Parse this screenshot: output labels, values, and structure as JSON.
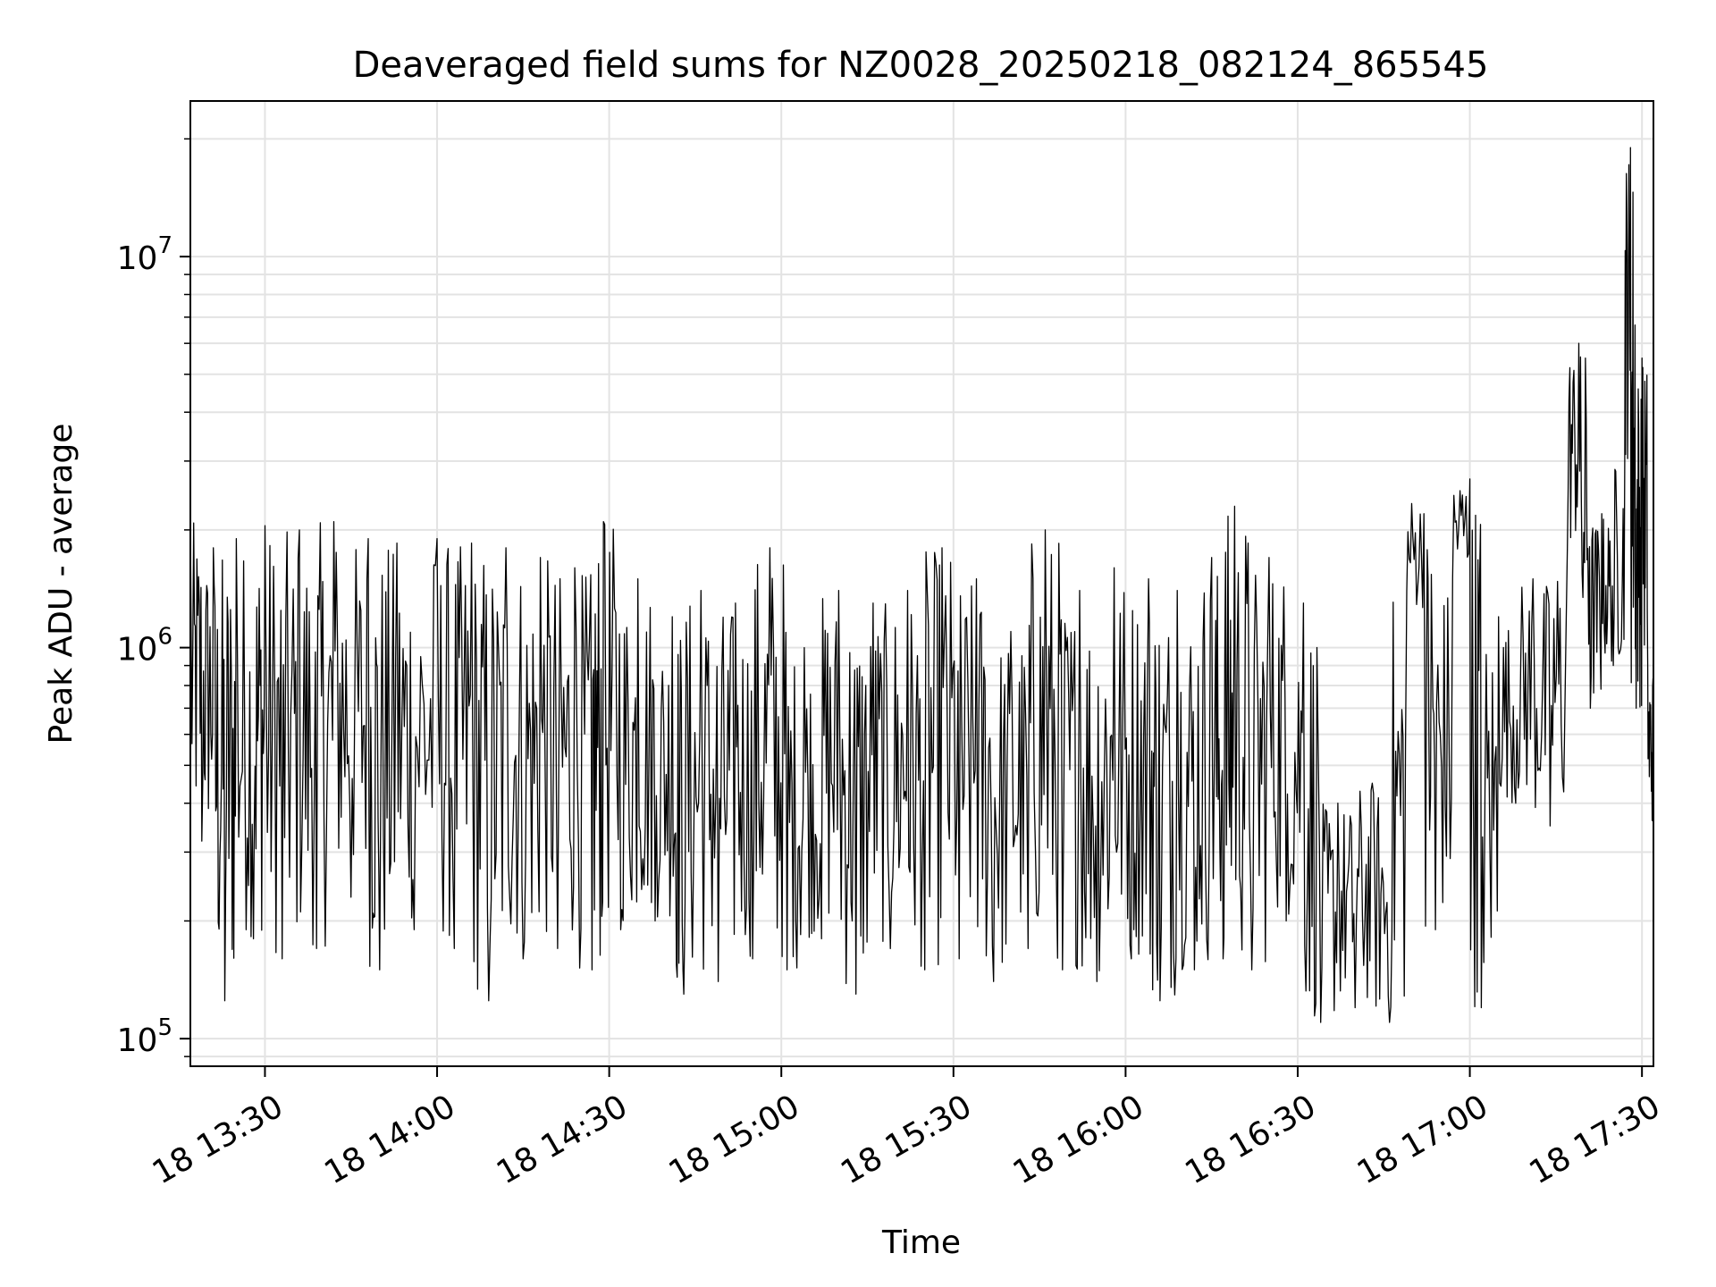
{
  "chart_data": {
    "type": "line",
    "title": "Deaveraged field sums for NZ0028_20250218_082124_865545",
    "xlabel": "Time",
    "ylabel": "Peak ADU - average",
    "yscale": "log",
    "xlim": [
      "18 13:17",
      "18 17:32"
    ],
    "ylim": [
      85000,
      25000000
    ],
    "x_ticks": [
      "18 13:30",
      "18 14:00",
      "18 14:30",
      "18 15:00",
      "18 15:30",
      "18 16:00",
      "18 16:30",
      "18 17:00",
      "18 17:30"
    ],
    "y_ticks": [
      {
        "base": "10",
        "exp": "5",
        "value": 100000
      },
      {
        "base": "10",
        "exp": "6",
        "value": 1000000
      },
      {
        "base": "10",
        "exp": "7",
        "value": 10000000
      }
    ],
    "grid": true,
    "line_color": "#000000",
    "series": [
      {
        "description_points": "approximate envelope of the dense noisy signal (time, value)",
        "points": [
          [
            "18 13:17",
            2100000
          ],
          [
            "18 13:19",
            320000
          ],
          [
            "18 13:21",
            1800000
          ],
          [
            "18 13:23",
            125000
          ],
          [
            "18 13:25",
            1900000
          ],
          [
            "18 13:28",
            180000
          ],
          [
            "18 13:30",
            2050000
          ],
          [
            "18 13:33",
            160000
          ],
          [
            "18 13:36",
            2000000
          ],
          [
            "18 13:39",
            170000
          ],
          [
            "18 13:42",
            2100000
          ],
          [
            "18 13:45",
            230000
          ],
          [
            "18 13:48",
            1900000
          ],
          [
            "18 13:50",
            150000
          ],
          [
            "18 13:53",
            1850000
          ],
          [
            "18 13:56",
            190000
          ],
          [
            "18 14:00",
            1900000
          ],
          [
            "18 14:03",
            170000
          ],
          [
            "18 14:06",
            1850000
          ],
          [
            "18 14:09",
            125000
          ],
          [
            "18 14:12",
            1800000
          ],
          [
            "18 14:15",
            160000
          ],
          [
            "18 14:18",
            1700000
          ],
          [
            "18 14:21",
            170000
          ],
          [
            "18 14:24",
            1600000
          ],
          [
            "18 14:27",
            150000
          ],
          [
            "18 14:29",
            2100000
          ],
          [
            "18 14:32",
            190000
          ],
          [
            "18 14:35",
            1500000
          ],
          [
            "18 14:38",
            200000
          ],
          [
            "18 14:41",
            1200000
          ],
          [
            "18 14:43",
            130000
          ],
          [
            "18 14:46",
            1400000
          ],
          [
            "18 14:49",
            140000
          ],
          [
            "18 14:52",
            1300000
          ],
          [
            "18 14:55",
            160000
          ],
          [
            "18 14:58",
            1800000
          ],
          [
            "18 15:01",
            150000
          ],
          [
            "18 15:04",
            1000000
          ],
          [
            "18 15:07",
            180000
          ],
          [
            "18 15:10",
            1400000
          ],
          [
            "18 15:13",
            130000
          ],
          [
            "18 15:16",
            1300000
          ],
          [
            "18 15:19",
            170000
          ],
          [
            "18 15:22",
            1400000
          ],
          [
            "18 15:25",
            150000
          ],
          [
            "18 15:28",
            1800000
          ],
          [
            "18 15:31",
            160000
          ],
          [
            "18 15:34",
            1500000
          ],
          [
            "18 15:37",
            140000
          ],
          [
            "18 15:40",
            1100000
          ],
          [
            "18 15:43",
            170000
          ],
          [
            "18 15:46",
            2000000
          ],
          [
            "18 15:49",
            150000
          ],
          [
            "18 15:52",
            1400000
          ],
          [
            "18 15:55",
            140000
          ],
          [
            "18 15:58",
            1600000
          ],
          [
            "18 16:01",
            160000
          ],
          [
            "18 16:04",
            1500000
          ],
          [
            "18 16:06",
            125000
          ],
          [
            "18 16:09",
            1400000
          ],
          [
            "18 16:12",
            150000
          ],
          [
            "18 16:15",
            1700000
          ],
          [
            "18 16:17",
            160000
          ],
          [
            "18 16:19",
            2300000
          ],
          [
            "18 16:22",
            150000
          ],
          [
            "18 16:25",
            1700000
          ],
          [
            "18 16:28",
            200000
          ],
          [
            "18 16:31",
            1300000
          ],
          [
            "18 16:34",
            110000
          ],
          [
            "18 16:37",
            400000
          ],
          [
            "18 16:40",
            120000
          ],
          [
            "18 16:43",
            450000
          ],
          [
            "18 16:46",
            110000
          ],
          [
            "18 16:49",
            1400000
          ],
          [
            "18 16:52",
            2200000
          ],
          [
            "18 16:54",
            190000
          ],
          [
            "18 16:57",
            1500000
          ],
          [
            "18 17:00",
            2700000
          ],
          [
            "18 17:02",
            120000
          ],
          [
            "18 17:05",
            1200000
          ],
          [
            "18 17:08",
            400000
          ],
          [
            "18 17:11",
            1500000
          ],
          [
            "18 17:14",
            350000
          ],
          [
            "18 17:17",
            1800000
          ],
          [
            "18 17:19",
            6000000
          ],
          [
            "18 17:21",
            700000
          ],
          [
            "18 17:23",
            2200000
          ],
          [
            "18 17:25",
            900000
          ],
          [
            "18 17:27",
            3000000
          ],
          [
            "18 17:28",
            19000000
          ],
          [
            "18 17:29",
            700000
          ],
          [
            "18 17:30",
            5500000
          ],
          [
            "18 17:31",
            900000
          ],
          [
            "18 17:32",
            350000
          ]
        ]
      }
    ]
  }
}
